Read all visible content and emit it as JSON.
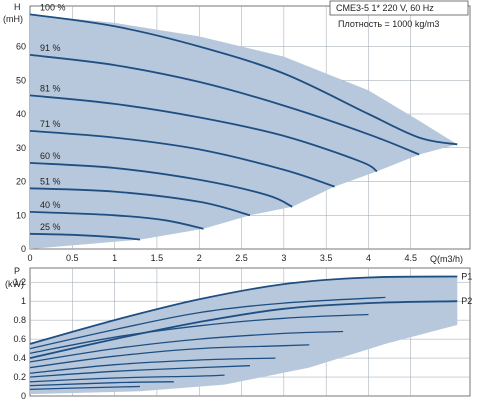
{
  "chart_data": [
    {
      "type": "line",
      "ylabel_lines": [
        "H",
        "(mH)"
      ],
      "xlabel": "Q(m3/h)",
      "xlim": [
        0,
        5.2
      ],
      "ylim": [
        0,
        72
      ],
      "x_ticks": [
        "0",
        "0.5",
        "1",
        "1.5",
        "2",
        "2.5",
        "3",
        "3.5",
        "4",
        "4.5"
      ],
      "y_ticks": [
        "0",
        "10",
        "20",
        "30",
        "40",
        "50",
        "60"
      ],
      "grid": true,
      "info_title": "CME3-5    1* 220 V, 60 Hz",
      "info_density": "Плотность = 1000 kg/m3",
      "fill_color": "#b7c8dd",
      "line_color": "#1f4f82",
      "series": [
        {
          "name": "100 %",
          "x": [
            0,
            1,
            2,
            3,
            4,
            4.6,
            5.05
          ],
          "y": [
            69.5,
            66,
            60,
            52,
            40,
            33,
            31
          ]
        },
        {
          "name": "91 %",
          "x": [
            0,
            1,
            2,
            3,
            4,
            4.6
          ],
          "y": [
            57.5,
            54.5,
            49.5,
            42.5,
            34,
            28
          ]
        },
        {
          "name": "81 %",
          "x": [
            0,
            1,
            2,
            3,
            3.9,
            4.1
          ],
          "y": [
            45.5,
            43,
            39,
            33.5,
            26,
            23
          ]
        },
        {
          "name": "71 %",
          "x": [
            0,
            1,
            2,
            3,
            3.6
          ],
          "y": [
            35,
            33,
            29.5,
            23.5,
            18.5
          ]
        },
        {
          "name": "60 %",
          "x": [
            0,
            1,
            2,
            2.8,
            3.1
          ],
          "y": [
            25.5,
            24,
            20.5,
            16,
            12.5
          ]
        },
        {
          "name": "51 %",
          "x": [
            0,
            1,
            2,
            2.6
          ],
          "y": [
            18,
            17,
            14,
            10
          ]
        },
        {
          "name": "40 %",
          "x": [
            0,
            1,
            1.6,
            2.05
          ],
          "y": [
            11,
            10,
            8.5,
            6
          ]
        },
        {
          "name": "25 %",
          "x": [
            0,
            0.5,
            1,
            1.3
          ],
          "y": [
            4.5,
            4.2,
            3.5,
            2.8
          ]
        }
      ],
      "operating_envelope": {
        "x": [
          0,
          1.3,
          2.05,
          2.6,
          3.1,
          3.6,
          4.1,
          4.6,
          5.05,
          4.6,
          4.0,
          3.0,
          2.0,
          1.0,
          0
        ],
        "y": [
          0,
          2.8,
          6,
          10,
          12.5,
          18.5,
          23,
          28,
          31,
          38,
          47,
          57,
          63,
          67,
          69.5
        ]
      }
    },
    {
      "type": "line",
      "ylabel_lines": [
        "P",
        "(kW)"
      ],
      "xlim": [
        0,
        5.2
      ],
      "ylim": [
        0,
        1.35
      ],
      "y_ticks": [
        "0",
        "0.2",
        "0.4",
        "0.6",
        "0.8",
        "1",
        "1.2"
      ],
      "grid": true,
      "series": [
        {
          "name": "P1",
          "x": [
            0,
            1,
            2,
            3,
            4,
            5.05
          ],
          "y": [
            0.55,
            0.8,
            1.02,
            1.18,
            1.25,
            1.26
          ]
        },
        {
          "name": "P2",
          "x": [
            0,
            1,
            2,
            3,
            4,
            5.05
          ],
          "y": [
            0.4,
            0.6,
            0.78,
            0.92,
            0.98,
            1.0
          ]
        }
      ],
      "unlabeled_curves": [
        {
          "x": [
            0,
            1,
            2,
            3,
            4.2
          ],
          "y": [
            0.5,
            0.7,
            0.88,
            0.98,
            1.04
          ]
        },
        {
          "x": [
            0,
            1,
            2,
            3,
            4.0
          ],
          "y": [
            0.45,
            0.62,
            0.74,
            0.82,
            0.86
          ]
        },
        {
          "x": [
            0,
            1,
            2,
            3,
            3.7
          ],
          "y": [
            0.36,
            0.5,
            0.6,
            0.66,
            0.68
          ]
        },
        {
          "x": [
            0,
            1,
            2,
            3,
            3.3
          ],
          "y": [
            0.3,
            0.42,
            0.5,
            0.53,
            0.54
          ]
        },
        {
          "x": [
            0,
            1,
            2,
            2.9
          ],
          "y": [
            0.24,
            0.33,
            0.38,
            0.4
          ]
        },
        {
          "x": [
            0,
            1,
            2,
            2.6
          ],
          "y": [
            0.2,
            0.26,
            0.3,
            0.32
          ]
        },
        {
          "x": [
            0,
            1,
            2,
            2.3
          ],
          "y": [
            0.15,
            0.19,
            0.21,
            0.22
          ]
        },
        {
          "x": [
            0,
            1,
            1.7
          ],
          "y": [
            0.11,
            0.14,
            0.15
          ]
        },
        {
          "x": [
            0,
            0.8,
            1.3
          ],
          "y": [
            0.07,
            0.09,
            0.1
          ]
        }
      ],
      "operating_envelope": {
        "x": [
          0,
          1.3,
          2.3,
          3.3,
          4.2,
          5.05,
          5.05,
          4.0,
          3.0,
          2.0,
          1.0,
          0
        ],
        "y": [
          0.02,
          0.05,
          0.12,
          0.3,
          0.55,
          0.75,
          1.26,
          1.25,
          1.18,
          1.02,
          0.8,
          0.55
        ]
      }
    }
  ]
}
